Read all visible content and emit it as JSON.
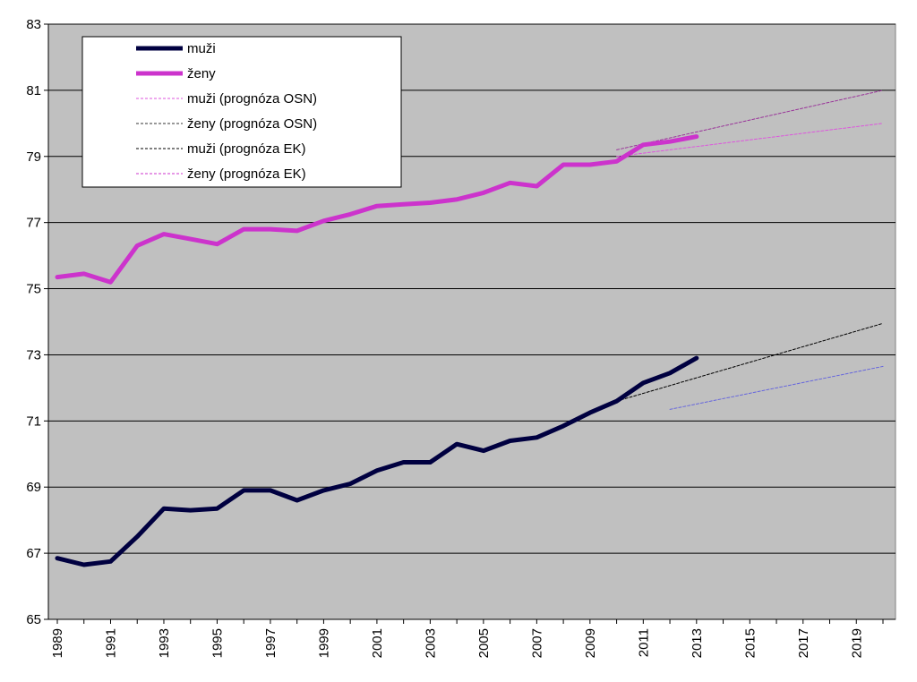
{
  "chart_data": {
    "type": "line",
    "title": "",
    "xlabel": "",
    "ylabel": "",
    "x": [
      1989,
      1990,
      1991,
      1992,
      1993,
      1994,
      1995,
      1996,
      1997,
      1998,
      1999,
      2000,
      2001,
      2002,
      2003,
      2004,
      2005,
      2006,
      2007,
      2008,
      2009,
      2010,
      2011,
      2012,
      2013
    ],
    "xlim": [
      1989,
      2020
    ],
    "ylim": [
      65,
      83
    ],
    "y_ticks": [
      "65",
      "67",
      "69",
      "71",
      "73",
      "75",
      "77",
      "79",
      "81",
      "83"
    ],
    "x_ticks": [
      "1989",
      "1991",
      "1993",
      "1995",
      "1997",
      "1999",
      "2001",
      "2003",
      "2005",
      "2007",
      "2009",
      "2011",
      "2013",
      "2015",
      "2017",
      "2019"
    ],
    "grid": true,
    "legend_position": "top-left",
    "plot_background": "#c0c0c0",
    "series": [
      {
        "name": "muži",
        "color": "#000040",
        "style": "solid",
        "x": [
          1989,
          1990,
          1991,
          1992,
          1993,
          1994,
          1995,
          1996,
          1997,
          1998,
          1999,
          2000,
          2001,
          2002,
          2003,
          2004,
          2005,
          2006,
          2007,
          2008,
          2009,
          2010,
          2011,
          2012,
          2013
        ],
        "values": [
          66.85,
          66.65,
          66.75,
          67.5,
          68.35,
          68.3,
          68.35,
          68.9,
          68.9,
          68.6,
          68.9,
          69.1,
          69.5,
          69.75,
          69.75,
          70.3,
          70.1,
          70.4,
          70.5,
          70.85,
          71.25,
          71.6,
          72.15,
          72.45,
          72.9
        ]
      },
      {
        "name": "ženy",
        "color": "#cc33cc",
        "style": "solid",
        "x": [
          1989,
          1990,
          1991,
          1992,
          1993,
          1994,
          1995,
          1996,
          1997,
          1998,
          1999,
          2000,
          2001,
          2002,
          2003,
          2004,
          2005,
          2006,
          2007,
          2008,
          2009,
          2010,
          2011,
          2012,
          2013
        ],
        "values": [
          75.35,
          75.45,
          75.2,
          76.3,
          76.65,
          76.5,
          76.35,
          76.8,
          76.8,
          76.75,
          77.05,
          77.25,
          77.5,
          77.55,
          77.6,
          77.7,
          77.9,
          78.2,
          78.1,
          78.75,
          78.75,
          78.85,
          79.35,
          79.45,
          79.6
        ]
      },
      {
        "name": "muži (prognóza OSN)",
        "color": "#6666dd",
        "style": "dashed",
        "x": [
          2012,
          2020
        ],
        "values": [
          71.35,
          72.65
        ]
      },
      {
        "name": "ženy (prognóza OSN)",
        "color": "#dd55dd",
        "style": "dashed",
        "x": [
          2010,
          2020
        ],
        "values": [
          79.0,
          80.0
        ]
      },
      {
        "name": "muži (prognóza EK)",
        "color": "#000000",
        "style": "dashed",
        "x": [
          2010,
          2020
        ],
        "values": [
          71.6,
          73.95
        ]
      },
      {
        "name": "ženy (prognóza EK)",
        "color": "#993399",
        "style": "dashed",
        "x": [
          2010,
          2020
        ],
        "values": [
          79.2,
          81.0
        ]
      }
    ]
  },
  "legend": {
    "entries": [
      {
        "label": "muži",
        "color": "#000040",
        "style": "solid"
      },
      {
        "label": "ženy",
        "color": "#cc33cc",
        "style": "solid"
      },
      {
        "label": "muži (prognóza OSN)",
        "color": "#dd55dd",
        "style": "dashed"
      },
      {
        "label": "ženy (prognóza OSN)",
        "color": "#333333",
        "style": "dashed"
      },
      {
        "label": "muži (prognóza EK)",
        "color": "#000000",
        "style": "dashed"
      },
      {
        "label": "ženy (prognóza EK)",
        "color": "#cc33cc",
        "style": "dashed"
      }
    ]
  }
}
